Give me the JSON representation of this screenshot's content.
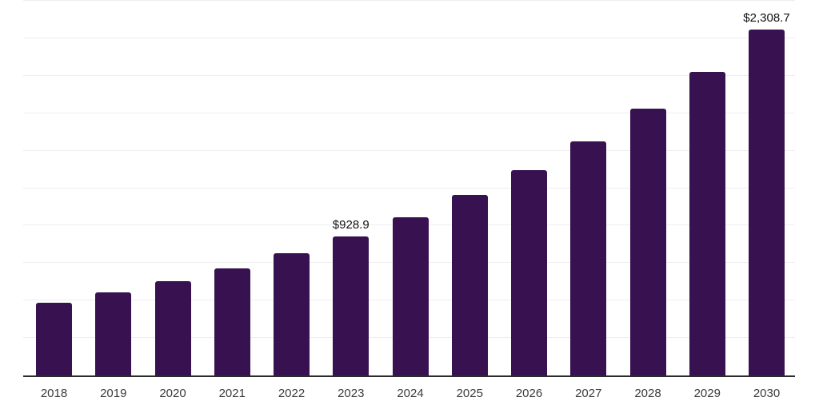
{
  "chart_data": {
    "type": "bar",
    "title": "",
    "xlabel": "",
    "ylabel": "",
    "categories": [
      "2018",
      "2019",
      "2020",
      "2021",
      "2022",
      "2023",
      "2024",
      "2025",
      "2026",
      "2027",
      "2028",
      "2029",
      "2030"
    ],
    "values": [
      484.6,
      552.0,
      628.7,
      716.1,
      815.6,
      928.9,
      1057.9,
      1204.9,
      1372.3,
      1563.0,
      1780.1,
      2027.4,
      2308.7
    ],
    "data_labels": [
      "",
      "",
      "",
      "",
      "",
      "$928.9",
      "",
      "",
      "",
      "",
      "",
      "",
      "$2,308.7"
    ],
    "ylim": [
      0,
      2500
    ],
    "gridline_interval": 250,
    "grid": "horizontal",
    "legend": "none",
    "colors": {
      "bar": "#371150",
      "gridline": "#eeeeee",
      "axis_line": "#2b2b2b",
      "tick_label": "#3b3b3b",
      "data_label": "#111111",
      "background": "#ffffff"
    }
  }
}
